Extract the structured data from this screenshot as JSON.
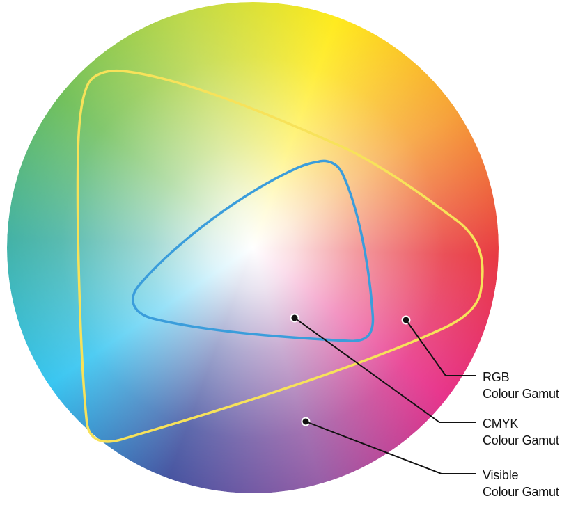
{
  "colors": {
    "rgb_gamut_outline": "#F7E25A",
    "cmyk_gamut_outline": "#3B9DDB",
    "leader_line": "#111111",
    "hue_stops": [
      "#FFE800",
      "#F5941E",
      "#E5202A",
      "#E4197C",
      "#8A4A9C",
      "#2F3F95",
      "#1FBEEF",
      "#2BA89A",
      "#5FB846",
      "#B7D433",
      "#FFE800"
    ]
  },
  "labels": {
    "rgb": {
      "line1": "RGB",
      "line2": "Colour Gamut"
    },
    "cmyk": {
      "line1": "CMYK",
      "line2": "Colour Gamut"
    },
    "visible": {
      "line1": "Visible",
      "line2": "Colour Gamut"
    }
  }
}
